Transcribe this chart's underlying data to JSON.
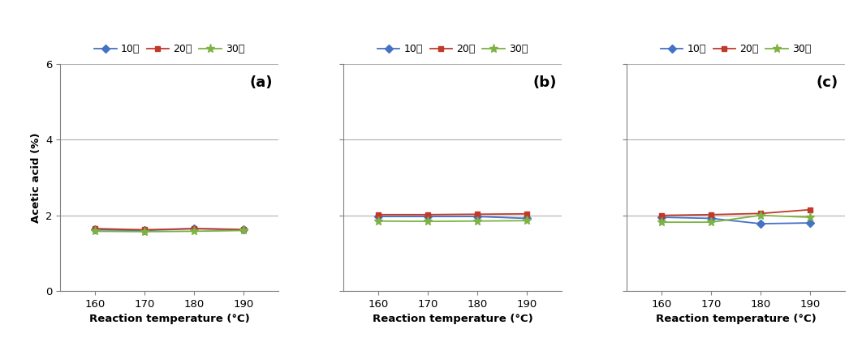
{
  "x": [
    160,
    170,
    180,
    190
  ],
  "panels": [
    {
      "label": "(a)",
      "series": {
        "10min": [
          1.62,
          1.6,
          1.65,
          1.62
        ],
        "20min": [
          1.65,
          1.62,
          1.65,
          1.63
        ],
        "30min": [
          1.58,
          1.57,
          1.58,
          1.6
        ]
      }
    },
    {
      "label": "(b)",
      "series": {
        "10min": [
          1.97,
          1.97,
          1.97,
          1.92
        ],
        "20min": [
          2.02,
          2.02,
          2.03,
          2.04
        ],
        "30min": [
          1.85,
          1.84,
          1.85,
          1.86
        ]
      }
    },
    {
      "label": "(c)",
      "series": {
        "10min": [
          1.95,
          1.92,
          1.78,
          1.8
        ],
        "20min": [
          2.0,
          2.02,
          2.05,
          2.15
        ],
        "30min": [
          1.82,
          1.82,
          2.0,
          1.95
        ]
      }
    }
  ],
  "colors": {
    "10min": "#4472C4",
    "20min": "#C0392B",
    "30min": "#7CB342"
  },
  "markers": {
    "10min": "D",
    "20min": "s",
    "30min": "*"
  },
  "legend_labels": [
    "10분",
    "20분",
    "30분"
  ],
  "xlabel": "Reaction temperature (°C)",
  "ylabel": "Acetic acid (%)",
  "ylim": [
    0,
    6
  ],
  "yticks": [
    0,
    2,
    4,
    6
  ],
  "xticks": [
    160,
    170,
    180,
    190
  ],
  "background_color": "#ffffff",
  "grid_color": "#b0b0b0",
  "spine_color": "#808080",
  "tick_label_color": "#000000",
  "axis_label_color": "#000000"
}
